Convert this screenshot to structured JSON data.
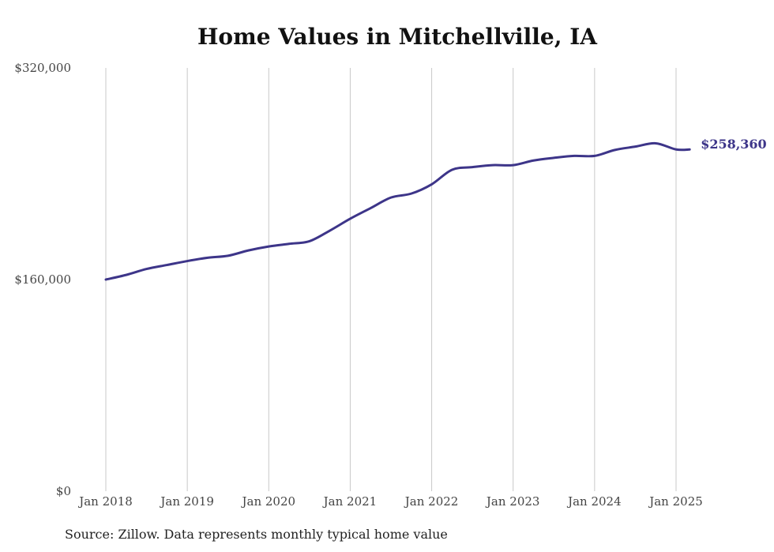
{
  "chart_data": {
    "type": "line",
    "title": "Home Values in Mitchellville, IA",
    "xlabel": "",
    "ylabel": "",
    "ylim": [
      0,
      320000
    ],
    "y_ticks": [
      0,
      160000,
      320000
    ],
    "y_tick_labels": [
      "$0",
      "$160,000",
      "$320,000"
    ],
    "x_ticks": [
      "2018-01",
      "2019-01",
      "2020-01",
      "2021-01",
      "2022-01",
      "2023-01",
      "2024-01",
      "2025-01"
    ],
    "x_tick_labels": [
      "Jan 2018",
      "Jan 2019",
      "Jan 2020",
      "Jan 2021",
      "Jan 2022",
      "Jan 2023",
      "Jan 2024",
      "Jan 2025"
    ],
    "vertical_grid": true,
    "line_color": "#3d3589",
    "series": [
      {
        "x": [
          "2018-01",
          "2018-04",
          "2018-07",
          "2018-10",
          "2019-01",
          "2019-04",
          "2019-07",
          "2019-10",
          "2020-01",
          "2020-04",
          "2020-07",
          "2020-10",
          "2021-01",
          "2021-04",
          "2021-07",
          "2021-10",
          "2022-01",
          "2022-04",
          "2022-07",
          "2022-10",
          "2023-01",
          "2023-04",
          "2023-07",
          "2023-10",
          "2024-01",
          "2024-04",
          "2024-07",
          "2024-10",
          "2025-01",
          "2025-03"
        ],
        "values": [
          160000,
          163500,
          168000,
          171000,
          174000,
          176500,
          178000,
          182000,
          185000,
          187000,
          189000,
          197000,
          206000,
          214000,
          222000,
          225000,
          232000,
          243000,
          245000,
          246500,
          246500,
          250000,
          252000,
          253500,
          253500,
          258000,
          260500,
          263000,
          258360,
          258360
        ]
      }
    ],
    "end_label": "$258,360",
    "source": "Source: Zillow. Data represents monthly typical home value"
  }
}
